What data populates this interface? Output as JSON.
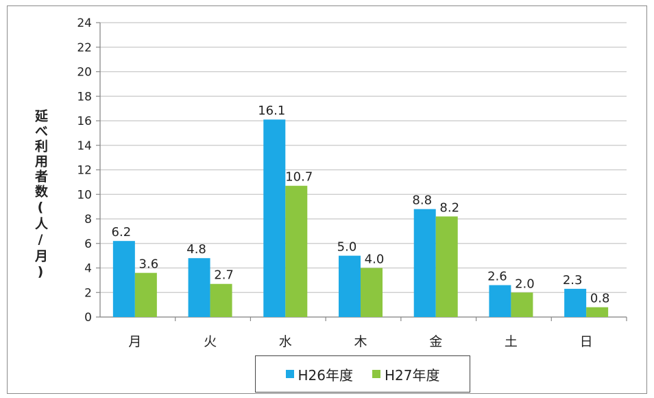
{
  "chart_data": {
    "type": "bar",
    "categories": [
      "月",
      "火",
      "水",
      "木",
      "金",
      "土",
      "日"
    ],
    "series": [
      {
        "name": "H26年度",
        "color": "#1ca9e6",
        "values": [
          6.2,
          4.8,
          16.1,
          5.0,
          8.8,
          2.6,
          2.3
        ]
      },
      {
        "name": "H27年度",
        "color": "#8cc63f",
        "values": [
          3.6,
          2.7,
          10.7,
          4.0,
          8.2,
          2.0,
          0.8
        ]
      }
    ],
    "labels": [
      [
        "6.2",
        "4.8",
        "16.1",
        "5.0",
        "8.8",
        "2.6",
        "2.3"
      ],
      [
        "3.6",
        "2.7",
        "10.7",
        "4.0",
        "8.2",
        "2.0",
        "0.8"
      ]
    ],
    "ylabel": "延べ利用者数(人/月)",
    "xlabel": "",
    "ylim": [
      0,
      24
    ],
    "yticks": [
      0,
      2,
      4,
      6,
      8,
      10,
      12,
      14,
      16,
      18,
      20,
      22,
      24
    ],
    "grid": true,
    "legend_position": "bottom"
  }
}
